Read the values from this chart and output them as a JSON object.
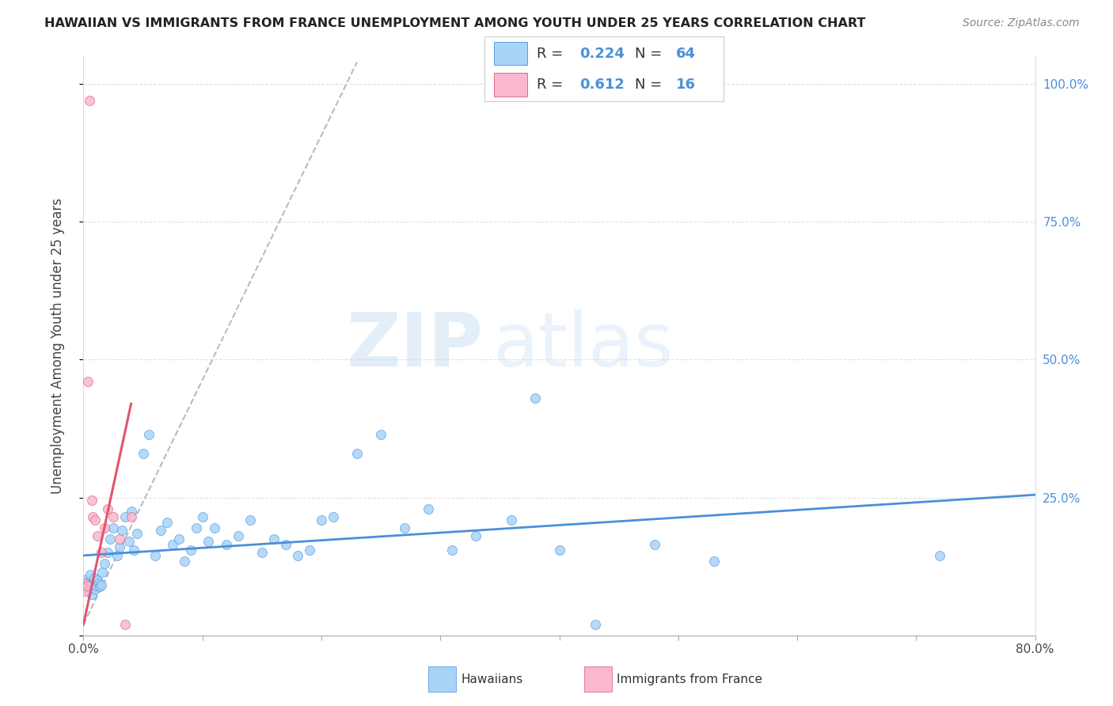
{
  "title": "HAWAIIAN VS IMMIGRANTS FROM FRANCE UNEMPLOYMENT AMONG YOUTH UNDER 25 YEARS CORRELATION CHART",
  "source": "Source: ZipAtlas.com",
  "ylabel": "Unemployment Among Youth under 25 years",
  "xlim": [
    0.0,
    0.8
  ],
  "ylim": [
    0.0,
    1.05
  ],
  "hawaiian_R": 0.224,
  "hawaiian_N": 64,
  "france_R": 0.612,
  "france_N": 16,
  "hawaiian_color": "#A8D4F8",
  "france_color": "#F9B8CE",
  "trend_hawaiian_color": "#4A90D9",
  "trend_france_color": "#E05570",
  "trend_france_dashed_color": "#BBBBBB",
  "watermark_zip": "ZIP",
  "watermark_atlas": "atlas",
  "hawaiian_x": [
    0.001,
    0.002,
    0.003,
    0.004,
    0.005,
    0.006,
    0.007,
    0.008,
    0.009,
    0.01,
    0.011,
    0.012,
    0.013,
    0.014,
    0.015,
    0.016,
    0.018,
    0.02,
    0.022,
    0.025,
    0.028,
    0.03,
    0.032,
    0.035,
    0.038,
    0.04,
    0.042,
    0.045,
    0.05,
    0.055,
    0.06,
    0.065,
    0.07,
    0.075,
    0.08,
    0.085,
    0.09,
    0.095,
    0.1,
    0.105,
    0.11,
    0.12,
    0.13,
    0.14,
    0.15,
    0.16,
    0.17,
    0.18,
    0.19,
    0.2,
    0.21,
    0.23,
    0.25,
    0.27,
    0.29,
    0.31,
    0.33,
    0.36,
    0.38,
    0.4,
    0.43,
    0.48,
    0.53,
    0.72
  ],
  "hawaiian_y": [
    0.1,
    0.085,
    0.095,
    0.09,
    0.08,
    0.11,
    0.075,
    0.095,
    0.105,
    0.085,
    0.09,
    0.1,
    0.095,
    0.088,
    0.092,
    0.115,
    0.13,
    0.15,
    0.175,
    0.195,
    0.145,
    0.16,
    0.19,
    0.215,
    0.17,
    0.225,
    0.155,
    0.185,
    0.33,
    0.365,
    0.145,
    0.19,
    0.205,
    0.165,
    0.175,
    0.135,
    0.155,
    0.195,
    0.215,
    0.17,
    0.195,
    0.165,
    0.18,
    0.21,
    0.15,
    0.175,
    0.165,
    0.145,
    0.155,
    0.21,
    0.215,
    0.33,
    0.365,
    0.195,
    0.23,
    0.155,
    0.18,
    0.21,
    0.43,
    0.155,
    0.02,
    0.165,
    0.135,
    0.145
  ],
  "france_x": [
    0.001,
    0.002,
    0.003,
    0.004,
    0.005,
    0.007,
    0.008,
    0.01,
    0.012,
    0.015,
    0.018,
    0.02,
    0.025,
    0.03,
    0.035,
    0.04
  ],
  "france_y": [
    0.095,
    0.08,
    0.09,
    0.46,
    0.97,
    0.245,
    0.215,
    0.21,
    0.18,
    0.15,
    0.195,
    0.23,
    0.215,
    0.175,
    0.02,
    0.215
  ],
  "trend_h_x0": 0.0,
  "trend_h_x1": 0.8,
  "trend_h_y0": 0.145,
  "trend_h_y1": 0.255,
  "trend_f_solid_x0": 0.0,
  "trend_f_solid_x1": 0.04,
  "trend_f_solid_y0": 0.02,
  "trend_f_solid_y1": 0.42,
  "trend_f_dash_x0": 0.0,
  "trend_f_dash_x1": 0.23,
  "trend_f_dash_y0": 0.02,
  "trend_f_dash_y1": 1.04
}
